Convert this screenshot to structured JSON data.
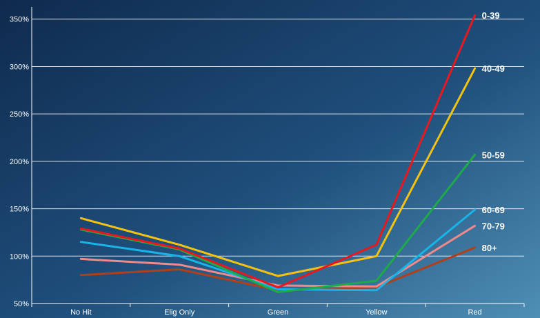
{
  "chart_data": {
    "type": "line",
    "title": "",
    "xlabel": "",
    "ylabel": "",
    "categories": [
      "No Hit",
      "Elig Only",
      "Green",
      "Yellow",
      "Red"
    ],
    "y_ticks": [
      "50%",
      "100%",
      "150%",
      "200%",
      "250%",
      "300%",
      "350%"
    ],
    "ylim": [
      50,
      360
    ],
    "y_unit": "%",
    "grid": true,
    "background": "dark blue gradient",
    "series": [
      {
        "name": "80+",
        "color": "#b0401a",
        "values": [
          80,
          86,
          64,
          67,
          109
        ]
      },
      {
        "name": "70-79",
        "color": "#f08a8a",
        "values": [
          97,
          91,
          69,
          68,
          132
        ]
      },
      {
        "name": "60-69",
        "color": "#18b4e8",
        "values": [
          115,
          100,
          65,
          64,
          149
        ]
      },
      {
        "name": "50-59",
        "color": "#1faa4a",
        "values": [
          128,
          107,
          62,
          74,
          207
        ]
      },
      {
        "name": "40-49",
        "color": "#f5c211",
        "values": [
          140,
          112,
          79,
          100,
          298
        ]
      },
      {
        "name": "0-39",
        "color": "#e8191e",
        "values": [
          129,
          108,
          67,
          112,
          354
        ]
      }
    ]
  }
}
